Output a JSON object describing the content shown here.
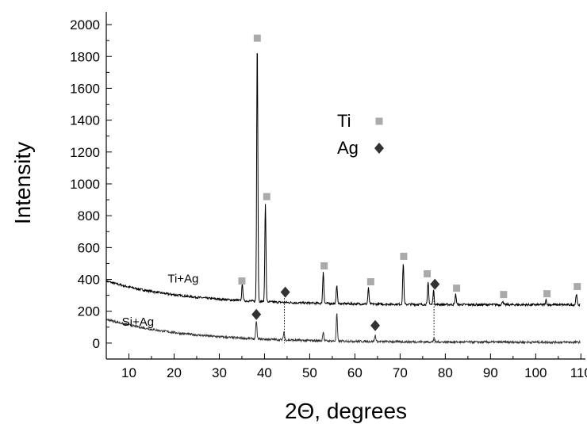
{
  "chart_data": {
    "type": "line",
    "xlabel": "2Θ, degrees",
    "ylabel": "Intensity",
    "xlim": [
      5,
      111
    ],
    "ylim": [
      -100,
      2080
    ],
    "x_ticks": [
      10,
      20,
      30,
      40,
      50,
      60,
      70,
      80,
      90,
      100,
      110
    ],
    "y_ticks": [
      0,
      200,
      400,
      600,
      800,
      1000,
      1200,
      1400,
      1600,
      1800,
      2000
    ],
    "grid": false,
    "series": [
      {
        "name": "Ti+Ag",
        "color": "#000000",
        "baseline_start": 390,
        "baseline_end": 240,
        "label_at": [
          22,
          380
        ],
        "peaks": [
          {
            "x": 35.1,
            "y": 345
          },
          {
            "x": 38.4,
            "y": 1880
          },
          {
            "x": 40.2,
            "y": 860
          },
          {
            "x": 53.0,
            "y": 440
          },
          {
            "x": 56.0,
            "y": 360
          },
          {
            "x": 63.0,
            "y": 340
          },
          {
            "x": 70.7,
            "y": 500
          },
          {
            "x": 76.2,
            "y": 380
          },
          {
            "x": 77.4,
            "y": 330
          },
          {
            "x": 82.3,
            "y": 305
          },
          {
            "x": 92.7,
            "y": 265
          },
          {
            "x": 102.3,
            "y": 270
          },
          {
            "x": 109.0,
            "y": 310
          }
        ]
      },
      {
        "name": "Si+Ag",
        "color": "#333333",
        "baseline_start": 150,
        "baseline_end": 5,
        "label_at": [
          12,
          110
        ],
        "peaks": [
          {
            "x": 38.2,
            "y": 120
          },
          {
            "x": 44.3,
            "y": 55
          },
          {
            "x": 53.0,
            "y": 65
          },
          {
            "x": 56.0,
            "y": 180
          },
          {
            "x": 64.5,
            "y": 45
          },
          {
            "x": 77.5,
            "y": 30
          }
        ]
      }
    ],
    "markers": {
      "Ti": {
        "color": "#aaaaaa",
        "shape": "square",
        "points": [
          {
            "x": 35.0,
            "y": 390
          },
          {
            "x": 38.4,
            "y": 1915
          },
          {
            "x": 40.5,
            "y": 920
          },
          {
            "x": 53.2,
            "y": 485
          },
          {
            "x": 63.5,
            "y": 385
          },
          {
            "x": 70.8,
            "y": 545
          },
          {
            "x": 76.0,
            "y": 435
          },
          {
            "x": 82.5,
            "y": 345
          },
          {
            "x": 92.9,
            "y": 305
          },
          {
            "x": 102.5,
            "y": 310
          },
          {
            "x": 109.2,
            "y": 355
          }
        ]
      },
      "Ag": {
        "color": "#333333",
        "shape": "diamond",
        "points": [
          {
            "x": 44.6,
            "y": 320
          },
          {
            "x": 77.7,
            "y": 370
          },
          {
            "x": 38.2,
            "y": 180
          },
          {
            "x": 64.5,
            "y": 110
          }
        ]
      }
    },
    "reference_lines": [
      44.4,
      77.5
    ],
    "legend": {
      "placement": "top-center",
      "entries": [
        {
          "label": "Ti",
          "marker": "square",
          "color": "#aaaaaa"
        },
        {
          "label": "Ag",
          "marker": "diamond",
          "color": "#333333"
        }
      ]
    }
  }
}
